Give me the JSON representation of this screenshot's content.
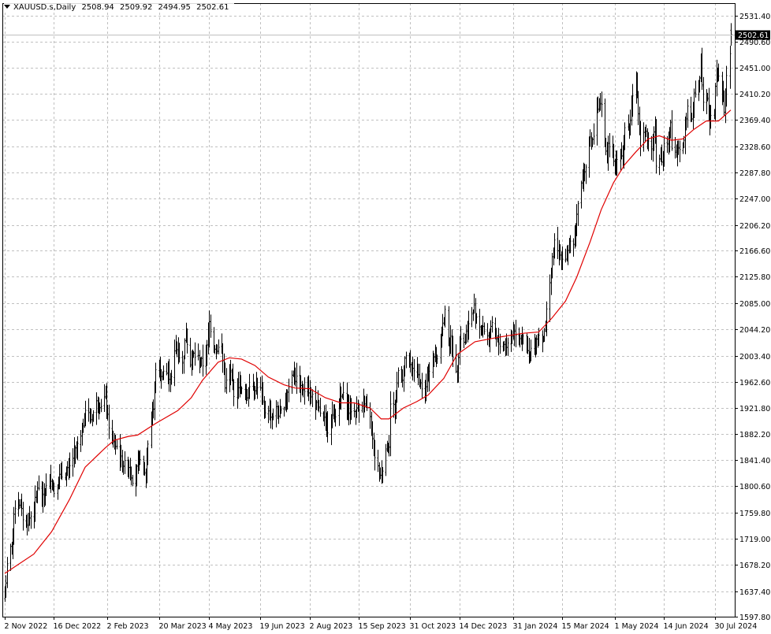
{
  "header": {
    "symbol_timeframe": "XAUUSD.s,Daily",
    "open": "2508.94",
    "high": "2509.92",
    "low": "2494.95",
    "close": "2502.61"
  },
  "colors": {
    "background": "#ffffff",
    "candles": "#000000",
    "moving_average": "#e00000",
    "grid": "#c0c0c0",
    "price_line": "#c0c0c0",
    "price_label_bg": "#000000",
    "price_label_text": "#ffffff"
  },
  "chart_data": {
    "type": "ohlc",
    "symbol": "XAUUSD.s",
    "timeframe": "Daily",
    "grid": true,
    "ylim": [
      1597.8,
      2551.0
    ],
    "xlim": [
      "2022-11-02",
      "2024-08-13"
    ],
    "y_ticks": [
      "2531.40",
      "2490.60",
      "2451.00",
      "2410.20",
      "2369.40",
      "2328.60",
      "2287.80",
      "2247.00",
      "2206.20",
      "2166.60",
      "2125.80",
      "2085.00",
      "2044.20",
      "2003.40",
      "1962.60",
      "1921.80",
      "1882.20",
      "1841.40",
      "1800.60",
      "1759.80",
      "1719.00",
      "1678.20",
      "1637.40",
      "1597.80"
    ],
    "x_ticks": [
      {
        "label": "2 Nov 2022",
        "date": "2022-11-02"
      },
      {
        "label": "16 Dec 2022",
        "date": "2022-12-16"
      },
      {
        "label": "2 Feb 2023",
        "date": "2023-02-02"
      },
      {
        "label": "20 Mar 2023",
        "date": "2023-03-20"
      },
      {
        "label": "4 May 2023",
        "date": "2023-05-04"
      },
      {
        "label": "19 Jun 2023",
        "date": "2023-06-19"
      },
      {
        "label": "2 Aug 2023",
        "date": "2023-08-02"
      },
      {
        "label": "15 Sep 2023",
        "date": "2023-09-15"
      },
      {
        "label": "31 Oct 2023",
        "date": "2023-10-31"
      },
      {
        "label": "14 Dec 2023",
        "date": "2023-12-14"
      },
      {
        "label": "31 Jan 2024",
        "date": "2024-01-31"
      },
      {
        "label": "15 Mar 2024",
        "date": "2024-03-15"
      },
      {
        "label": "1 May 2024",
        "date": "2024-05-01"
      },
      {
        "label": "14 Jun 2024",
        "date": "2024-06-14"
      },
      {
        "label": "30 Jul 2024",
        "date": "2024-07-30"
      }
    ],
    "current_price": "2502.61",
    "close_path": [
      [
        "2022-11-02",
        1632
      ],
      [
        "2022-11-04",
        1675
      ],
      [
        "2022-11-08",
        1712
      ],
      [
        "2022-11-11",
        1770
      ],
      [
        "2022-11-15",
        1775
      ],
      [
        "2022-11-18",
        1752
      ],
      [
        "2022-11-22",
        1745
      ],
      [
        "2022-11-28",
        1765
      ],
      [
        "2022-12-01",
        1800
      ],
      [
        "2022-12-05",
        1775
      ],
      [
        "2022-12-08",
        1795
      ],
      [
        "2022-12-13",
        1815
      ],
      [
        "2022-12-16",
        1792
      ],
      [
        "2022-12-21",
        1815
      ],
      [
        "2022-12-27",
        1820
      ],
      [
        "2022-12-30",
        1830
      ],
      [
        "2023-01-04",
        1855
      ],
      [
        "2023-01-09",
        1875
      ],
      [
        "2023-01-13",
        1920
      ],
      [
        "2023-01-18",
        1905
      ],
      [
        "2023-01-23",
        1930
      ],
      [
        "2023-01-27",
        1928
      ],
      [
        "2023-01-31",
        1940
      ],
      [
        "2023-02-02",
        1905
      ],
      [
        "2023-02-06",
        1868
      ],
      [
        "2023-02-10",
        1862
      ],
      [
        "2023-02-15",
        1835
      ],
      [
        "2023-02-21",
        1832
      ],
      [
        "2023-02-24",
        1812
      ],
      [
        "2023-02-28",
        1826
      ],
      [
        "2023-03-03",
        1848
      ],
      [
        "2023-03-08",
        1812
      ],
      [
        "2023-03-10",
        1868
      ],
      [
        "2023-03-13",
        1910
      ],
      [
        "2023-03-15",
        1920
      ],
      [
        "2023-03-17",
        1985
      ],
      [
        "2023-03-20",
        1980
      ],
      [
        "2023-03-22",
        1968
      ],
      [
        "2023-03-24",
        1980
      ],
      [
        "2023-03-28",
        1975
      ],
      [
        "2023-03-31",
        1968
      ],
      [
        "2023-04-04",
        2020
      ],
      [
        "2023-04-06",
        2008
      ],
      [
        "2023-04-10",
        1990
      ],
      [
        "2023-04-13",
        2038
      ],
      [
        "2023-04-17",
        1995
      ],
      [
        "2023-04-20",
        2005
      ],
      [
        "2023-04-25",
        1998
      ],
      [
        "2023-04-28",
        1990
      ],
      [
        "2023-05-02",
        2015
      ],
      [
        "2023-05-04",
        2055
      ],
      [
        "2023-05-08",
        2020
      ],
      [
        "2023-05-11",
        2015
      ],
      [
        "2023-05-15",
        2015
      ],
      [
        "2023-05-18",
        1958
      ],
      [
        "2023-05-23",
        1975
      ],
      [
        "2023-05-26",
        1946
      ],
      [
        "2023-05-31",
        1962
      ],
      [
        "2023-06-02",
        1948
      ],
      [
        "2023-06-07",
        1940
      ],
      [
        "2023-06-09",
        1962
      ],
      [
        "2023-06-14",
        1955
      ],
      [
        "2023-06-16",
        1958
      ],
      [
        "2023-06-19",
        1950
      ],
      [
        "2023-06-22",
        1915
      ],
      [
        "2023-06-26",
        1922
      ],
      [
        "2023-06-29",
        1908
      ],
      [
        "2023-07-03",
        1920
      ],
      [
        "2023-07-06",
        1910
      ],
      [
        "2023-07-11",
        1932
      ],
      [
        "2023-07-14",
        1955
      ],
      [
        "2023-07-18",
        1978
      ],
      [
        "2023-07-20",
        1968
      ],
      [
        "2023-07-24",
        1955
      ],
      [
        "2023-07-27",
        1945
      ],
      [
        "2023-07-31",
        1965
      ],
      [
        "2023-08-02",
        1935
      ],
      [
        "2023-08-04",
        1942
      ],
      [
        "2023-08-08",
        1925
      ],
      [
        "2023-08-11",
        1915
      ],
      [
        "2023-08-15",
        1902
      ],
      [
        "2023-08-18",
        1890
      ],
      [
        "2023-08-23",
        1915
      ],
      [
        "2023-08-25",
        1915
      ],
      [
        "2023-08-29",
        1937
      ],
      [
        "2023-09-01",
        1940
      ],
      [
        "2023-09-06",
        1918
      ],
      [
        "2023-09-08",
        1920
      ],
      [
        "2023-09-12",
        1915
      ],
      [
        "2023-09-15",
        1925
      ],
      [
        "2023-09-19",
        1932
      ],
      [
        "2023-09-21",
        1920
      ],
      [
        "2023-09-25",
        1912
      ],
      [
        "2023-09-27",
        1873
      ],
      [
        "2023-09-29",
        1848
      ],
      [
        "2023-10-03",
        1822
      ],
      [
        "2023-10-05",
        1820
      ],
      [
        "2023-10-09",
        1860
      ],
      [
        "2023-10-12",
        1868
      ],
      [
        "2023-10-13",
        1928
      ],
      [
        "2023-10-17",
        1922
      ],
      [
        "2023-10-20",
        1980
      ],
      [
        "2023-10-24",
        1970
      ],
      [
        "2023-10-27",
        2005
      ],
      [
        "2023-10-31",
        1985
      ],
      [
        "2023-11-02",
        1985
      ],
      [
        "2023-11-06",
        1978
      ],
      [
        "2023-11-09",
        1958
      ],
      [
        "2023-11-13",
        1945
      ],
      [
        "2023-11-15",
        1965
      ],
      [
        "2023-11-17",
        1982
      ],
      [
        "2023-11-21",
        1998
      ],
      [
        "2023-11-24",
        2000
      ],
      [
        "2023-11-28",
        2042
      ],
      [
        "2023-12-01",
        2070
      ],
      [
        "2023-12-04",
        2028
      ],
      [
        "2023-12-06",
        2028
      ],
      [
        "2023-12-08",
        2005
      ],
      [
        "2023-12-12",
        1978
      ],
      [
        "2023-12-14",
        2035
      ],
      [
        "2023-12-18",
        2025
      ],
      [
        "2023-12-21",
        2045
      ],
      [
        "2023-12-27",
        2078
      ],
      [
        "2023-12-29",
        2065
      ],
      [
        "2024-01-03",
        2042
      ],
      [
        "2024-01-05",
        2045
      ],
      [
        "2024-01-09",
        2030
      ],
      [
        "2024-01-12",
        2048
      ],
      [
        "2024-01-16",
        2028
      ],
      [
        "2024-01-18",
        2022
      ],
      [
        "2024-01-22",
        2022
      ],
      [
        "2024-01-25",
        2018
      ],
      [
        "2024-01-29",
        2033
      ],
      [
        "2024-01-31",
        2040
      ],
      [
        "2024-02-02",
        2040
      ],
      [
        "2024-02-06",
        2035
      ],
      [
        "2024-02-08",
        2030
      ],
      [
        "2024-02-12",
        2018
      ],
      [
        "2024-02-14",
        1995
      ],
      [
        "2024-02-16",
        2012
      ],
      [
        "2024-02-20",
        2025
      ],
      [
        "2024-02-23",
        2035
      ],
      [
        "2024-02-27",
        2032
      ],
      [
        "2024-02-29",
        2045
      ],
      [
        "2024-03-01",
        2082
      ],
      [
        "2024-03-04",
        2118
      ],
      [
        "2024-03-06",
        2150
      ],
      [
        "2024-03-08",
        2178
      ],
      [
        "2024-03-12",
        2158
      ],
      [
        "2024-03-14",
        2162
      ],
      [
        "2024-03-15",
        2155
      ],
      [
        "2024-03-19",
        2158
      ],
      [
        "2024-03-21",
        2180
      ],
      [
        "2024-03-25",
        2170
      ],
      [
        "2024-03-27",
        2195
      ],
      [
        "2024-03-28",
        2230
      ],
      [
        "2024-04-02",
        2280
      ],
      [
        "2024-04-04",
        2290
      ],
      [
        "2024-04-08",
        2338
      ],
      [
        "2024-04-10",
        2335
      ],
      [
        "2024-04-12",
        2345
      ],
      [
        "2024-04-15",
        2382
      ],
      [
        "2024-04-17",
        2390
      ],
      [
        "2024-04-19",
        2390
      ],
      [
        "2024-04-22",
        2328
      ],
      [
        "2024-04-24",
        2318
      ],
      [
        "2024-04-26",
        2335
      ],
      [
        "2024-04-30",
        2300
      ],
      [
        "2024-05-02",
        2305
      ],
      [
        "2024-05-06",
        2322
      ],
      [
        "2024-05-08",
        2310
      ],
      [
        "2024-05-10",
        2362
      ],
      [
        "2024-05-14",
        2355
      ],
      [
        "2024-05-17",
        2408
      ],
      [
        "2024-05-20",
        2428
      ],
      [
        "2024-05-22",
        2380
      ],
      [
        "2024-05-24",
        2335
      ],
      [
        "2024-05-28",
        2360
      ],
      [
        "2024-05-31",
        2330
      ],
      [
        "2024-06-04",
        2325
      ],
      [
        "2024-06-06",
        2375
      ],
      [
        "2024-06-07",
        2295
      ],
      [
        "2024-06-11",
        2315
      ],
      [
        "2024-06-13",
        2305
      ],
      [
        "2024-06-14",
        2332
      ],
      [
        "2024-06-18",
        2330
      ],
      [
        "2024-06-20",
        2362
      ],
      [
        "2024-06-21",
        2325
      ],
      [
        "2024-06-25",
        2320
      ],
      [
        "2024-06-27",
        2328
      ],
      [
        "2024-07-01",
        2330
      ],
      [
        "2024-07-03",
        2358
      ],
      [
        "2024-07-05",
        2392
      ],
      [
        "2024-07-09",
        2365
      ],
      [
        "2024-07-11",
        2412
      ],
      [
        "2024-07-15",
        2422
      ],
      [
        "2024-07-17",
        2460
      ],
      [
        "2024-07-19",
        2402
      ],
      [
        "2024-07-23",
        2408
      ],
      [
        "2024-07-25",
        2365
      ],
      [
        "2024-07-29",
        2388
      ],
      [
        "2024-07-31",
        2448
      ],
      [
        "2024-08-02",
        2442
      ],
      [
        "2024-08-05",
        2408
      ],
      [
        "2024-08-07",
        2385
      ],
      [
        "2024-08-09",
        2432
      ],
      [
        "2024-08-12",
        2472
      ],
      [
        "2024-08-13",
        2502.61
      ]
    ],
    "moving_average": [
      [
        "2022-11-02",
        1665
      ],
      [
        "2022-11-28",
        1695
      ],
      [
        "2022-12-14",
        1730
      ],
      [
        "2022-12-30",
        1780
      ],
      [
        "2023-01-13",
        1830
      ],
      [
        "2023-01-31",
        1860
      ],
      [
        "2023-02-08",
        1872
      ],
      [
        "2023-02-21",
        1878
      ],
      [
        "2023-03-01",
        1880
      ],
      [
        "2023-03-17",
        1898
      ],
      [
        "2023-04-06",
        1918
      ],
      [
        "2023-04-18",
        1938
      ],
      [
        "2023-04-28",
        1965
      ],
      [
        "2023-05-12",
        1993
      ],
      [
        "2023-05-22",
        2000
      ],
      [
        "2023-06-02",
        1998
      ],
      [
        "2023-06-14",
        1988
      ],
      [
        "2023-06-26",
        1970
      ],
      [
        "2023-07-10",
        1958
      ],
      [
        "2023-07-20",
        1953
      ],
      [
        "2023-08-02",
        1952
      ],
      [
        "2023-08-16",
        1938
      ],
      [
        "2023-08-30",
        1930
      ],
      [
        "2023-09-11",
        1930
      ],
      [
        "2023-09-25",
        1922
      ],
      [
        "2023-10-05",
        1905
      ],
      [
        "2023-10-12",
        1905
      ],
      [
        "2023-10-25",
        1922
      ],
      [
        "2023-11-06",
        1932
      ],
      [
        "2023-11-16",
        1942
      ],
      [
        "2023-11-30",
        1968
      ],
      [
        "2023-12-12",
        2005
      ],
      [
        "2023-12-28",
        2025
      ],
      [
        "2024-01-18",
        2032
      ],
      [
        "2024-02-09",
        2038
      ],
      [
        "2024-02-23",
        2040
      ],
      [
        "2024-03-06",
        2062
      ],
      [
        "2024-03-18",
        2088
      ],
      [
        "2024-03-28",
        2125
      ],
      [
        "2024-04-09",
        2180
      ],
      [
        "2024-04-19",
        2230
      ],
      [
        "2024-04-30",
        2272
      ],
      [
        "2024-05-10",
        2300
      ],
      [
        "2024-05-20",
        2320
      ],
      [
        "2024-05-31",
        2340
      ],
      [
        "2024-06-10",
        2345
      ],
      [
        "2024-06-21",
        2338
      ],
      [
        "2024-07-01",
        2340
      ],
      [
        "2024-07-11",
        2355
      ],
      [
        "2024-07-22",
        2368
      ],
      [
        "2024-08-02",
        2368
      ],
      [
        "2024-08-13",
        2385
      ]
    ]
  }
}
